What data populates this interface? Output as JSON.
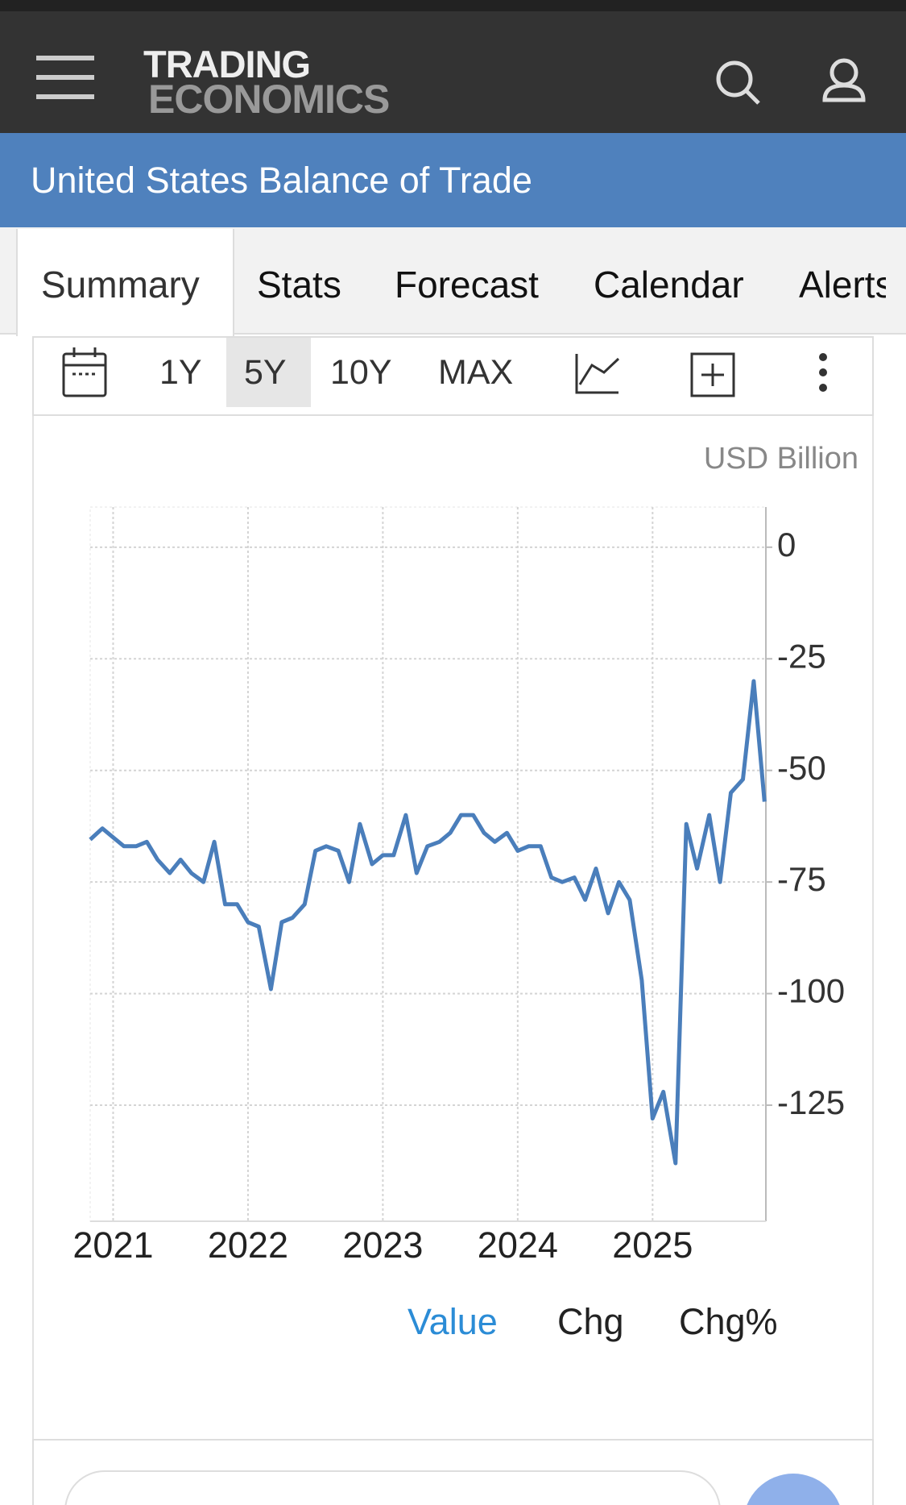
{
  "header": {
    "logo_line1": "TRADING",
    "logo_line2": "ECONOMICS"
  },
  "page_title": "United States Balance of Trade",
  "tabs": [
    "Summary",
    "Stats",
    "Forecast",
    "Calendar",
    "Alerts"
  ],
  "range_buttons": [
    "1Y",
    "5Y",
    "10Y",
    "MAX"
  ],
  "chart_data": {
    "type": "line",
    "unit_label": "USD Billion",
    "color": "#4a7ebb",
    "grid": true,
    "x": [
      2020.83,
      2020.92,
      2021,
      2021.08,
      2021.17,
      2021.25,
      2021.33,
      2021.42,
      2021.5,
      2021.58,
      2021.67,
      2021.75,
      2021.83,
      2021.92,
      2022,
      2022.08,
      2022.17,
      2022.25,
      2022.33,
      2022.42,
      2022.5,
      2022.58,
      2022.67,
      2022.75,
      2022.83,
      2022.92,
      2023,
      2023.08,
      2023.17,
      2023.25,
      2023.33,
      2023.42,
      2023.5,
      2023.58,
      2023.67,
      2023.75,
      2023.83,
      2023.92,
      2024,
      2024.08,
      2024.17,
      2024.25,
      2024.33,
      2024.42,
      2024.5,
      2024.58,
      2024.67,
      2024.75,
      2024.83,
      2024.92,
      2025,
      2025.08,
      2025.17,
      2025.25,
      2025.33,
      2025.42,
      2025.5,
      2025.58,
      2025.67,
      2025.75,
      2025.83
    ],
    "values": [
      -65.5,
      -63,
      -65,
      -67,
      -67,
      -66,
      -70,
      -73,
      -70,
      -73,
      -75,
      -66,
      -80,
      -80,
      -84,
      -85,
      -99,
      -84,
      -83,
      -80,
      -68,
      -67,
      -68,
      -75,
      -62,
      -71,
      -69,
      -69,
      -60,
      -73,
      -67,
      -66,
      -64,
      -60,
      -60,
      -64,
      -66,
      -64,
      -68,
      -67,
      -67,
      -74,
      -75,
      -74,
      -79,
      -72,
      -82,
      -75,
      -79,
      -97,
      -128,
      -122,
      -138,
      -62,
      -72,
      -60,
      -75,
      -55,
      -52,
      -30,
      -57
    ],
    "xlim": [
      2020.83,
      2025.84
    ],
    "ylim": [
      -151,
      9
    ],
    "xticks": [
      2021,
      2022,
      2023,
      2024,
      2025
    ],
    "yticks": [
      0,
      -25,
      -50,
      -75,
      -100,
      -125
    ]
  },
  "view_tabs": [
    "Value",
    "Chg",
    "Chg%"
  ]
}
